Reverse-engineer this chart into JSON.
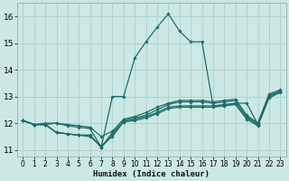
{
  "xlabel": "Humidex (Indice chaleur)",
  "bg_color": "#cce8e4",
  "grid_color": "#aacfcc",
  "line_color": "#1e6e6a",
  "xlim": [
    -0.5,
    23.5
  ],
  "ylim": [
    10.75,
    16.5
  ],
  "xticks": [
    0,
    1,
    2,
    3,
    4,
    5,
    6,
    7,
    8,
    9,
    10,
    11,
    12,
    13,
    14,
    15,
    16,
    17,
    18,
    19,
    20,
    21,
    22,
    23
  ],
  "yticks": [
    11,
    12,
    13,
    14,
    15,
    16
  ],
  "series": [
    [
      12.1,
      11.95,
      11.95,
      11.65,
      11.6,
      11.55,
      11.55,
      11.1,
      11.65,
      12.05,
      12.15,
      12.25,
      12.4,
      12.6,
      12.65,
      12.65,
      12.65,
      12.65,
      12.7,
      12.75,
      12.2,
      11.95,
      13.0,
      13.2
    ],
    [
      12.1,
      11.95,
      11.95,
      11.65,
      11.6,
      11.55,
      11.55,
      11.1,
      11.55,
      12.1,
      12.2,
      12.3,
      12.5,
      12.7,
      12.8,
      12.8,
      12.8,
      12.75,
      12.8,
      12.85,
      12.25,
      12.0,
      13.05,
      13.2
    ],
    [
      12.1,
      11.95,
      12.0,
      12.0,
      11.95,
      11.9,
      11.85,
      11.5,
      11.7,
      12.15,
      12.25,
      12.4,
      12.6,
      12.75,
      12.85,
      12.85,
      12.85,
      12.8,
      12.85,
      12.9,
      12.3,
      12.0,
      13.1,
      13.25
    ],
    [
      12.1,
      11.95,
      11.95,
      11.65,
      11.6,
      11.55,
      11.5,
      11.15,
      11.5,
      12.05,
      12.1,
      12.2,
      12.35,
      12.55,
      12.6,
      12.6,
      12.6,
      12.6,
      12.65,
      12.7,
      12.15,
      11.9,
      12.95,
      13.15
    ]
  ],
  "main_series_y": [
    12.1,
    11.95,
    11.95,
    12.0,
    11.9,
    11.85,
    11.8,
    11.1,
    13.0,
    13.0,
    14.45,
    15.05,
    15.6,
    16.1,
    15.45,
    15.05,
    15.05,
    12.65,
    12.65,
    12.75,
    12.75,
    11.95,
    13.0,
    13.2
  ],
  "x": [
    0,
    1,
    2,
    3,
    4,
    5,
    6,
    7,
    8,
    9,
    10,
    11,
    12,
    13,
    14,
    15,
    16,
    17,
    18,
    19,
    20,
    21,
    22,
    23
  ]
}
